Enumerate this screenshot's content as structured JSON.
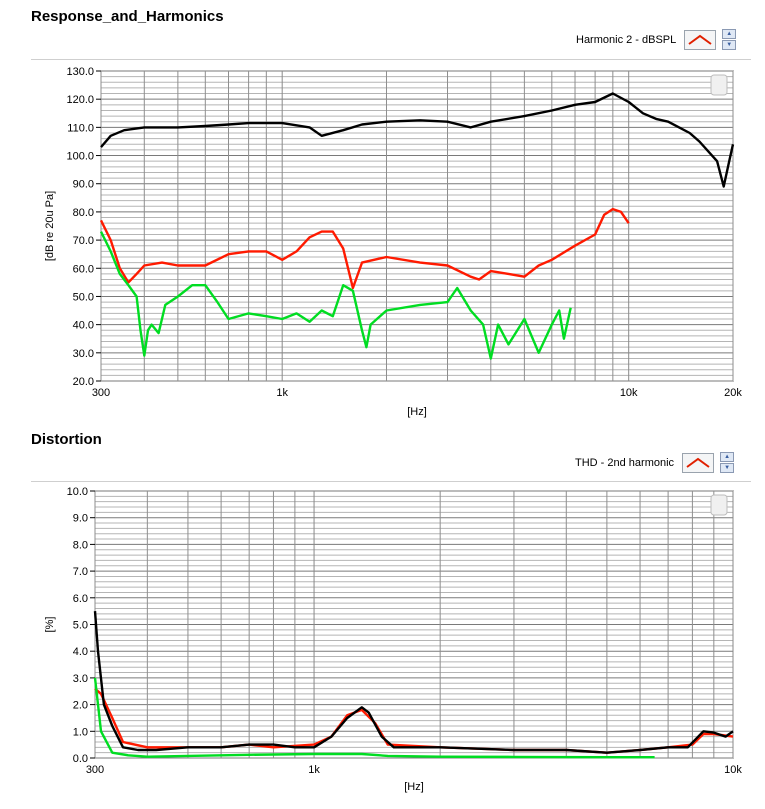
{
  "chart_data": [
    {
      "type": "line",
      "title": "Response_and_Harmonics",
      "legend_label": "Harmonic 2 - dBSPL",
      "xlabel": "[Hz]",
      "ylabel": "[dB re 20u Pa]",
      "xscale": "log",
      "xlim": [
        300,
        20000
      ],
      "ylim": [
        20,
        130
      ],
      "yticks": [
        "20.0",
        "30.0",
        "40.0",
        "50.0",
        "60.0",
        "70.0",
        "80.0",
        "90.0",
        "100.0",
        "110.0",
        "120.0",
        "130.0"
      ],
      "xticks": [
        {
          "v": 300,
          "label": "300"
        },
        {
          "v": 1000,
          "label": "1k"
        },
        {
          "v": 10000,
          "label": "10k"
        },
        {
          "v": 20000,
          "label": "20k"
        }
      ],
      "series": [
        {
          "color": "#000000",
          "points": [
            [
              300,
              103
            ],
            [
              320,
              107
            ],
            [
              350,
              109
            ],
            [
              400,
              110
            ],
            [
              500,
              110
            ],
            [
              600,
              110.5
            ],
            [
              700,
              111
            ],
            [
              800,
              111.5
            ],
            [
              1000,
              111.5
            ],
            [
              1200,
              110
            ],
            [
              1300,
              107
            ],
            [
              1500,
              109
            ],
            [
              1700,
              111
            ],
            [
              2000,
              112
            ],
            [
              2500,
              112.5
            ],
            [
              3000,
              112
            ],
            [
              3500,
              110
            ],
            [
              4000,
              112
            ],
            [
              5000,
              114
            ],
            [
              6000,
              116
            ],
            [
              7000,
              118
            ],
            [
              8000,
              119
            ],
            [
              9000,
              122
            ],
            [
              10000,
              119
            ],
            [
              11000,
              115
            ],
            [
              12000,
              113
            ],
            [
              13000,
              112
            ],
            [
              15000,
              108
            ],
            [
              16000,
              105
            ],
            [
              18000,
              98
            ],
            [
              18800,
              89
            ],
            [
              19500,
              98
            ],
            [
              20000,
              104
            ]
          ]
        },
        {
          "color": "#ff1a00",
          "points": [
            [
              300,
              77
            ],
            [
              320,
              70
            ],
            [
              340,
              60
            ],
            [
              360,
              55
            ],
            [
              380,
              58
            ],
            [
              400,
              61
            ],
            [
              450,
              62
            ],
            [
              500,
              61
            ],
            [
              550,
              61
            ],
            [
              600,
              61
            ],
            [
              700,
              65
            ],
            [
              800,
              66
            ],
            [
              900,
              66
            ],
            [
              1000,
              63
            ],
            [
              1100,
              66
            ],
            [
              1200,
              71
            ],
            [
              1300,
              73
            ],
            [
              1400,
              73
            ],
            [
              1500,
              67
            ],
            [
              1600,
              53
            ],
            [
              1700,
              62
            ],
            [
              2000,
              64
            ],
            [
              2500,
              62
            ],
            [
              3000,
              61
            ],
            [
              3500,
              57
            ],
            [
              3700,
              56
            ],
            [
              4000,
              59
            ],
            [
              4500,
              58
            ],
            [
              5000,
              57
            ],
            [
              5500,
              61
            ],
            [
              6000,
              63
            ],
            [
              7000,
              68
            ],
            [
              8000,
              72
            ],
            [
              8500,
              79
            ],
            [
              9000,
              81
            ],
            [
              9500,
              80
            ],
            [
              10000,
              76
            ]
          ]
        },
        {
          "color": "#00dd22",
          "points": [
            [
              300,
              73
            ],
            [
              320,
              66
            ],
            [
              340,
              58
            ],
            [
              360,
              54
            ],
            [
              380,
              50
            ],
            [
              390,
              38
            ],
            [
              400,
              29
            ],
            [
              410,
              38
            ],
            [
              420,
              40
            ],
            [
              440,
              37
            ],
            [
              460,
              47
            ],
            [
              500,
              50
            ],
            [
              550,
              54
            ],
            [
              600,
              54
            ],
            [
              650,
              48
            ],
            [
              700,
              42
            ],
            [
              800,
              44
            ],
            [
              900,
              43
            ],
            [
              1000,
              42
            ],
            [
              1100,
              44
            ],
            [
              1200,
              41
            ],
            [
              1300,
              45
            ],
            [
              1400,
              43
            ],
            [
              1500,
              54
            ],
            [
              1600,
              52
            ],
            [
              1700,
              38
            ],
            [
              1750,
              32
            ],
            [
              1800,
              40
            ],
            [
              2000,
              45
            ],
            [
              2500,
              47
            ],
            [
              3000,
              48
            ],
            [
              3200,
              53
            ],
            [
              3500,
              45
            ],
            [
              3800,
              40
            ],
            [
              4000,
              28
            ],
            [
              4200,
              40
            ],
            [
              4500,
              33
            ],
            [
              5000,
              42
            ],
            [
              5500,
              30
            ],
            [
              6000,
              40
            ],
            [
              6300,
              45
            ],
            [
              6500,
              35
            ],
            [
              6800,
              46
            ]
          ]
        }
      ]
    },
    {
      "type": "line",
      "title": "Distortion",
      "legend_label": "THD - 2nd harmonic",
      "xlabel": "[Hz]",
      "ylabel": "[%]",
      "xscale": "log",
      "xlim": [
        300,
        10000
      ],
      "ylim": [
        0,
        10
      ],
      "yticks": [
        "0.0",
        "1.0",
        "2.0",
        "3.0",
        "4.0",
        "5.0",
        "6.0",
        "7.0",
        "8.0",
        "9.0",
        "10.0"
      ],
      "xticks": [
        {
          "v": 300,
          "label": "300"
        },
        {
          "v": 1000,
          "label": "1k"
        },
        {
          "v": 10000,
          "label": "10k"
        }
      ],
      "series": [
        {
          "color": "#ff1a00",
          "points": [
            [
              300,
              2.6
            ],
            [
              310,
              2.4
            ],
            [
              330,
              1.5
            ],
            [
              350,
              0.6
            ],
            [
              400,
              0.4
            ],
            [
              500,
              0.4
            ],
            [
              600,
              0.4
            ],
            [
              700,
              0.5
            ],
            [
              800,
              0.4
            ],
            [
              1000,
              0.5
            ],
            [
              1100,
              0.8
            ],
            [
              1200,
              1.6
            ],
            [
              1300,
              1.8
            ],
            [
              1400,
              1.3
            ],
            [
              1500,
              0.5
            ],
            [
              2000,
              0.4
            ],
            [
              3000,
              0.3
            ],
            [
              4000,
              0.3
            ],
            [
              5000,
              0.2
            ],
            [
              6000,
              0.3
            ],
            [
              7000,
              0.4
            ],
            [
              8000,
              0.5
            ],
            [
              8500,
              0.9
            ],
            [
              9000,
              0.9
            ],
            [
              10000,
              0.8
            ]
          ]
        },
        {
          "color": "#000000",
          "points": [
            [
              300,
              5.5
            ],
            [
              305,
              4.0
            ],
            [
              315,
              2.0
            ],
            [
              330,
              1.2
            ],
            [
              350,
              0.4
            ],
            [
              380,
              0.3
            ],
            [
              420,
              0.3
            ],
            [
              500,
              0.4
            ],
            [
              600,
              0.4
            ],
            [
              700,
              0.5
            ],
            [
              800,
              0.5
            ],
            [
              900,
              0.4
            ],
            [
              1000,
              0.4
            ],
            [
              1100,
              0.8
            ],
            [
              1200,
              1.5
            ],
            [
              1300,
              1.9
            ],
            [
              1350,
              1.7
            ],
            [
              1450,
              0.8
            ],
            [
              1550,
              0.4
            ],
            [
              2000,
              0.4
            ],
            [
              3000,
              0.3
            ],
            [
              4000,
              0.3
            ],
            [
              5000,
              0.2
            ],
            [
              6000,
              0.3
            ],
            [
              7000,
              0.4
            ],
            [
              7800,
              0.4
            ],
            [
              8500,
              1.0
            ],
            [
              9000,
              0.95
            ],
            [
              9600,
              0.8
            ],
            [
              10000,
              1.0
            ]
          ]
        },
        {
          "color": "#00dd22",
          "points": [
            [
              300,
              3.0
            ],
            [
              310,
              1.0
            ],
            [
              330,
              0.2
            ],
            [
              360,
              0.1
            ],
            [
              400,
              0.05
            ],
            [
              500,
              0.08
            ],
            [
              700,
              0.12
            ],
            [
              1000,
              0.15
            ],
            [
              1300,
              0.15
            ],
            [
              1500,
              0.08
            ],
            [
              2000,
              0.05
            ],
            [
              3000,
              0.04
            ],
            [
              5000,
              0.03
            ],
            [
              6500,
              0.03
            ]
          ]
        }
      ]
    }
  ]
}
